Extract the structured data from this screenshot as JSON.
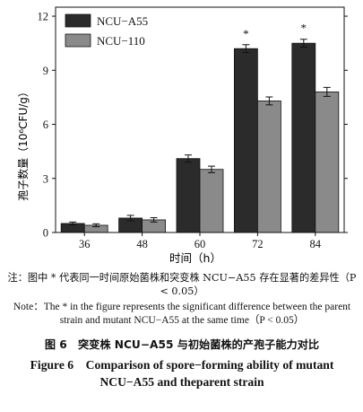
{
  "chart_data": {
    "type": "bar",
    "categories": [
      "36",
      "48",
      "60",
      "72",
      "84"
    ],
    "series": [
      {
        "name": "NCU−A55",
        "values": [
          0.5,
          0.8,
          4.1,
          10.2,
          10.5
        ],
        "errors": [
          0.08,
          0.15,
          0.2,
          0.22,
          0.22
        ],
        "color": "#2b2b2b"
      },
      {
        "name": "NCU−110",
        "values": [
          0.4,
          0.7,
          3.5,
          7.3,
          7.8
        ],
        "errors": [
          0.08,
          0.12,
          0.18,
          0.22,
          0.25
        ],
        "color": "#8a8a8a"
      }
    ],
    "significance": [
      "",
      "",
      "",
      "*",
      "*"
    ],
    "xlabel": "时间（h）",
    "ylabel": "孢子数量（10⁶CFU/g）",
    "ylim": [
      0,
      12.5
    ],
    "yticks": [
      "0",
      "3",
      "6",
      "9",
      "12"
    ],
    "legend_position": "top-left",
    "grid": false
  },
  "note_cn": "注：图中 * 代表同一时间原始菌株和突变株 NCU−A55 存在显著的差异性（P < 0.05）",
  "note_en": "Note：The * in the figure represents the significant difference between the parent strain and mutant NCU−A55 at the same time（P < 0.05）",
  "caption_cn": "图 6　突变株 NCU−A55 与初始菌株的产孢子能力对比",
  "caption_en": "Figure 6　Comparison of spore−forming ability of mutant NCU−A55 and theparent strain"
}
